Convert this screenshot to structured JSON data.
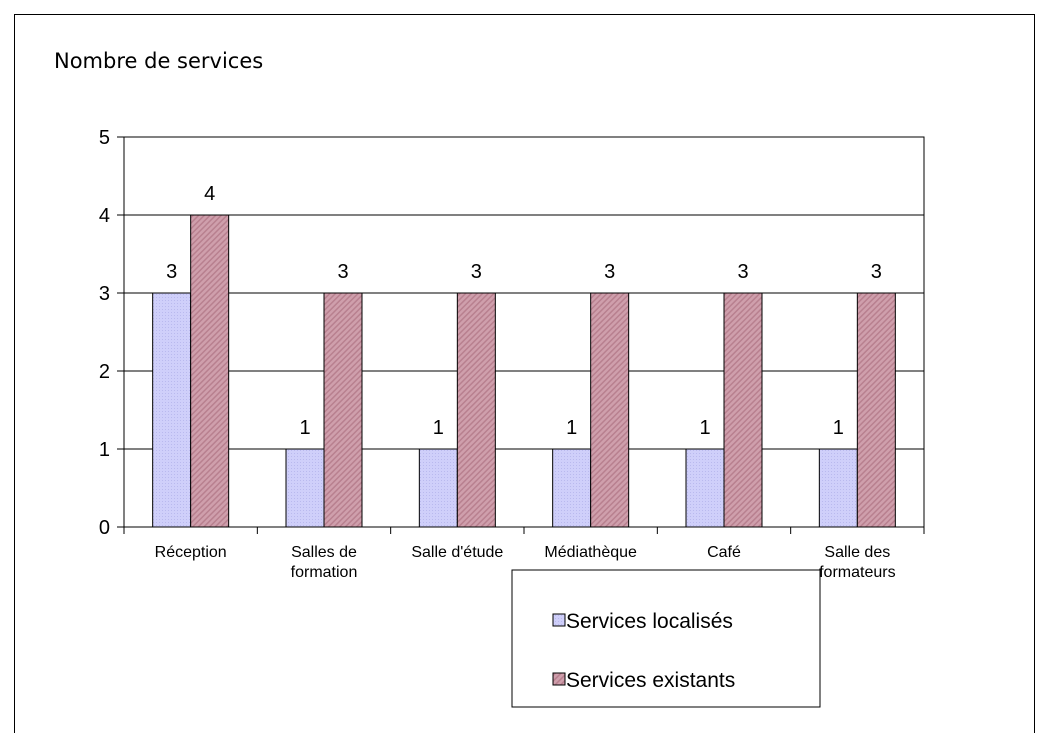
{
  "chart_data": {
    "type": "bar",
    "ylabel": "Nombre de services",
    "categories": [
      [
        "Réception"
      ],
      [
        "Salles de",
        "formation"
      ],
      [
        "Salle d'étude"
      ],
      [
        "Médiathèque"
      ],
      [
        "Café"
      ],
      [
        "Salle des",
        "formateurs"
      ]
    ],
    "series": [
      {
        "name": "Services localisés",
        "values": [
          3,
          1,
          1,
          1,
          1,
          1
        ],
        "color": "#ccccff"
      },
      {
        "name": "Services existants",
        "values": [
          4,
          3,
          3,
          3,
          3,
          3
        ],
        "color": "#c99aa6"
      }
    ],
    "ylim": [
      0,
      5
    ],
    "yticks": [
      0,
      1,
      2,
      3,
      4,
      5
    ],
    "grid": true,
    "legend_position": "bottom-right",
    "data_labels": true
  }
}
